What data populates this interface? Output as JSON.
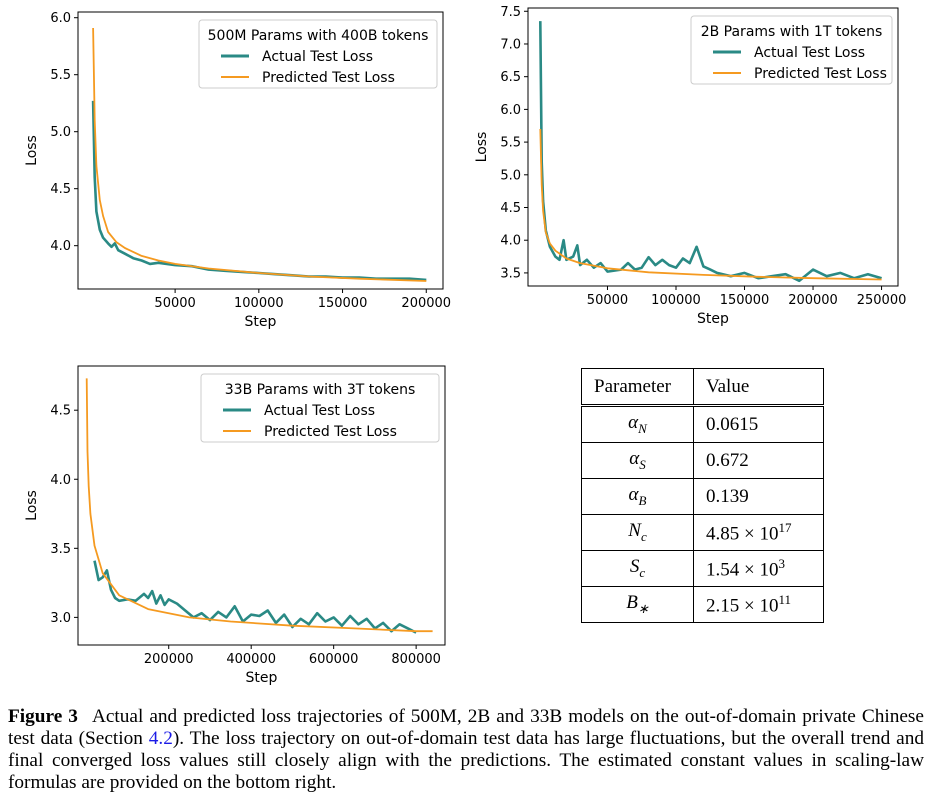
{
  "chart_data": [
    {
      "type": "line",
      "legend_title": "500M Params with 400B tokens",
      "legend_position": "top-right",
      "xlabel": "Step",
      "ylabel": "Loss",
      "xlim": [
        -8000,
        210000
      ],
      "ylim": [
        3.62,
        6.05
      ],
      "xticks": [
        50000,
        100000,
        150000,
        200000
      ],
      "xtick_labels": [
        "50000",
        "100000",
        "150000",
        "200000"
      ],
      "yticks": [
        4.0,
        4.5,
        5.0,
        5.5,
        6.0
      ],
      "ytick_labels": [
        "4.0",
        "4.5",
        "5.0",
        "5.5",
        "6.0"
      ],
      "series": [
        {
          "name": "Actual Test Loss",
          "color": "#2a8a85",
          "x": [
            1000,
            2000,
            3000,
            5000,
            7000,
            10000,
            12000,
            14000,
            16000,
            20000,
            25000,
            30000,
            35000,
            40000,
            50000,
            60000,
            70000,
            80000,
            90000,
            100000,
            110000,
            120000,
            130000,
            140000,
            150000,
            160000,
            170000,
            180000,
            190000,
            200000
          ],
          "y": [
            5.27,
            4.6,
            4.3,
            4.14,
            4.07,
            4.02,
            3.99,
            4.02,
            3.96,
            3.93,
            3.89,
            3.87,
            3.84,
            3.85,
            3.83,
            3.82,
            3.79,
            3.78,
            3.77,
            3.76,
            3.75,
            3.74,
            3.73,
            3.73,
            3.72,
            3.72,
            3.71,
            3.71,
            3.71,
            3.7
          ]
        },
        {
          "name": "Predicted Test Loss",
          "color": "#f59a20",
          "x": [
            1000,
            2000,
            3000,
            5000,
            7000,
            10000,
            15000,
            20000,
            30000,
            40000,
            50000,
            70000,
            100000,
            130000,
            160000,
            200000
          ],
          "y": [
            5.91,
            5.1,
            4.7,
            4.4,
            4.26,
            4.12,
            4.03,
            3.98,
            3.91,
            3.87,
            3.84,
            3.8,
            3.76,
            3.73,
            3.71,
            3.69
          ]
        }
      ]
    },
    {
      "type": "line",
      "legend_title": "2B Params with 1T tokens",
      "legend_position": "top-right",
      "xlabel": "Step",
      "ylabel": "Loss",
      "xlim": [
        -8000,
        262000
      ],
      "ylim": [
        3.3,
        7.55
      ],
      "xticks": [
        50000,
        100000,
        150000,
        200000,
        250000
      ],
      "xtick_labels": [
        "50000",
        "100000",
        "150000",
        "200000",
        "250000"
      ],
      "yticks": [
        3.5,
        4.0,
        4.5,
        5.0,
        5.5,
        6.0,
        6.5,
        7.0,
        7.5
      ],
      "ytick_labels": [
        "3.5",
        "4.0",
        "4.5",
        "5.0",
        "5.5",
        "6.0",
        "6.5",
        "7.0",
        "7.5"
      ],
      "series": [
        {
          "name": "Actual Test Loss",
          "color": "#2a8a85",
          "x": [
            1000,
            2000,
            3000,
            5000,
            8000,
            12000,
            15000,
            18000,
            20000,
            25000,
            28000,
            30000,
            35000,
            40000,
            45000,
            50000,
            60000,
            65000,
            70000,
            75000,
            80000,
            85000,
            90000,
            95000,
            100000,
            105000,
            110000,
            115000,
            120000,
            125000,
            130000,
            140000,
            150000,
            160000,
            170000,
            180000,
            190000,
            200000,
            210000,
            220000,
            230000,
            240000,
            250000
          ],
          "y": [
            7.35,
            5.2,
            4.6,
            4.15,
            3.9,
            3.75,
            3.7,
            4.0,
            3.7,
            3.75,
            3.92,
            3.62,
            3.7,
            3.58,
            3.65,
            3.52,
            3.55,
            3.65,
            3.55,
            3.58,
            3.74,
            3.62,
            3.7,
            3.62,
            3.58,
            3.72,
            3.65,
            3.9,
            3.6,
            3.55,
            3.5,
            3.45,
            3.5,
            3.42,
            3.45,
            3.48,
            3.38,
            3.55,
            3.45,
            3.5,
            3.42,
            3.48,
            3.42
          ]
        },
        {
          "name": "Predicted Test Loss",
          "color": "#f59a20",
          "x": [
            1000,
            2000,
            3000,
            5000,
            8000,
            12000,
            20000,
            30000,
            50000,
            80000,
            120000,
            160000,
            200000,
            250000
          ],
          "y": [
            5.7,
            4.85,
            4.45,
            4.12,
            3.95,
            3.84,
            3.72,
            3.65,
            3.57,
            3.51,
            3.47,
            3.44,
            3.42,
            3.4
          ]
        }
      ]
    },
    {
      "type": "line",
      "legend_title": "33B Params with 3T tokens",
      "legend_position": "top-right",
      "xlabel": "Step",
      "ylabel": "Loss",
      "xlim": [
        -20000,
        870000
      ],
      "ylim": [
        2.8,
        4.82
      ],
      "xticks": [
        200000,
        400000,
        600000,
        800000
      ],
      "xtick_labels": [
        "200000",
        "400000",
        "600000",
        "800000"
      ],
      "yticks": [
        3.0,
        3.5,
        4.0,
        4.5
      ],
      "ytick_labels": [
        "3.0",
        "3.5",
        "4.0",
        "4.5"
      ],
      "series": [
        {
          "name": "Actual Test Loss",
          "color": "#2a8a85",
          "x": [
            20000,
            30000,
            40000,
            50000,
            60000,
            70000,
            80000,
            100000,
            120000,
            140000,
            150000,
            160000,
            170000,
            180000,
            190000,
            200000,
            220000,
            240000,
            260000,
            280000,
            300000,
            320000,
            340000,
            360000,
            380000,
            400000,
            420000,
            440000,
            460000,
            480000,
            500000,
            520000,
            540000,
            560000,
            580000,
            600000,
            620000,
            640000,
            660000,
            680000,
            700000,
            720000,
            740000,
            760000,
            780000,
            800000
          ],
          "y": [
            3.41,
            3.27,
            3.29,
            3.34,
            3.2,
            3.14,
            3.12,
            3.13,
            3.12,
            3.17,
            3.14,
            3.19,
            3.1,
            3.16,
            3.09,
            3.13,
            3.1,
            3.05,
            3.0,
            3.03,
            2.98,
            3.04,
            3.0,
            3.08,
            2.97,
            3.02,
            3.01,
            3.05,
            2.96,
            3.02,
            2.93,
            2.99,
            2.95,
            3.03,
            2.97,
            3.0,
            2.94,
            3.01,
            2.95,
            2.99,
            2.92,
            2.96,
            2.9,
            2.95,
            2.92,
            2.89
          ]
        },
        {
          "name": "Predicted Test Loss",
          "color": "#f59a20",
          "x": [
            1000,
            3000,
            6000,
            10000,
            20000,
            40000,
            80000,
            150000,
            250000,
            350000,
            500000,
            650000,
            800000,
            840000
          ],
          "y": [
            4.73,
            4.2,
            3.95,
            3.75,
            3.52,
            3.32,
            3.16,
            3.06,
            3.0,
            2.97,
            2.94,
            2.92,
            2.9,
            2.9
          ]
        }
      ]
    }
  ],
  "table": {
    "headers": {
      "param": "Parameter",
      "value": "Value"
    },
    "rows": [
      {
        "symbol": "α_N",
        "value": "0.0615"
      },
      {
        "symbol": "α_S",
        "value": "0.672"
      },
      {
        "symbol": "α_B",
        "value": "0.139"
      },
      {
        "symbol": "N_c",
        "value": "4.85 × 10^17"
      },
      {
        "symbol": "S_c",
        "value": "1.54 × 10^3"
      },
      {
        "symbol": "B_*",
        "value": "2.15 × 10^11"
      }
    ],
    "display": [
      {
        "sym_base": "α",
        "sym_sub": "N",
        "val_base": "0.0615",
        "val_sup": ""
      },
      {
        "sym_base": "α",
        "sym_sub": "S",
        "val_base": "0.672",
        "val_sup": ""
      },
      {
        "sym_base": "α",
        "sym_sub": "B",
        "val_base": "0.139",
        "val_sup": ""
      },
      {
        "sym_base": "N",
        "sym_sub": "c",
        "val_base": "4.85 × 10",
        "val_sup": "17"
      },
      {
        "sym_base": "S",
        "sym_sub": "c",
        "val_base": "1.54 × 10",
        "val_sup": "3"
      },
      {
        "sym_base": "B",
        "sym_sub": "∗",
        "val_base": "2.15 × 10",
        "val_sup": "11"
      }
    ]
  },
  "caption": {
    "label": "Figure 3",
    "text_before": "Actual and predicted loss trajectories of 500M, 2B and 33B models on the out-of-domain private Chinese test data (Section ",
    "link": "4.2",
    "text_after": "). The loss trajectory on out-of-domain test data has large fluctuations, but the overall trend and final converged loss values still closely align with the predictions. The estimated constant values in scaling-law formulas are provided on the bottom right."
  }
}
